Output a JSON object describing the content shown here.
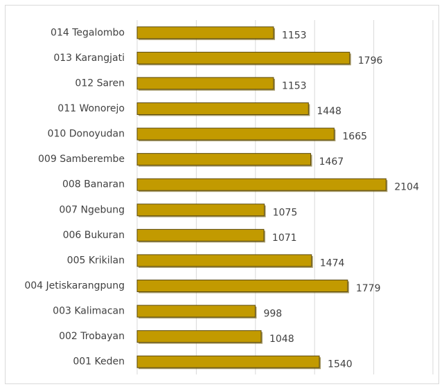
{
  "chart_data": {
    "type": "barh",
    "categories": [
      "001 Keden",
      "002 Trobayan",
      "003 Kalimacan",
      "004 Jetiskarangpung",
      "005 Krikilan",
      "006 Bukuran",
      "007 Ngebung",
      "008 Banaran",
      "009 Samberembe",
      "010 Donoyudan",
      "011 Wonorejo",
      "012 Saren",
      "013 Karangjati",
      "014 Tegalombo"
    ],
    "values": [
      1540,
      1048,
      998,
      1779,
      1474,
      1071,
      1075,
      2104,
      1467,
      1665,
      1448,
      1153,
      1796,
      1153
    ],
    "color": "#c29a00",
    "xlim": [
      0,
      2500
    ],
    "xticks": [
      0,
      500,
      1000,
      1500,
      2000,
      2500
    ],
    "grid": true
  }
}
